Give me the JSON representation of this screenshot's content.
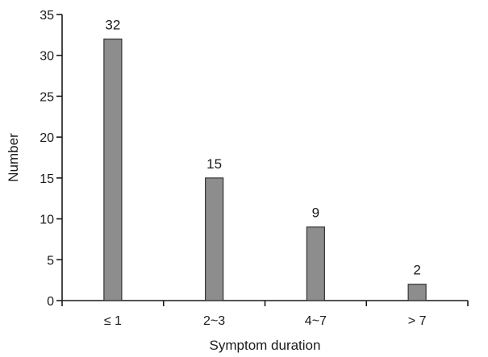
{
  "chart_data": {
    "type": "bar",
    "categories": [
      "≤ 1",
      "2~3",
      "4~7",
      "> 7"
    ],
    "values": [
      32,
      15,
      9,
      2
    ],
    "data_labels": [
      "32",
      "15",
      "9",
      "2"
    ],
    "title": "",
    "xlabel": "Symptom duration",
    "ylabel": "Number",
    "ylim": [
      0,
      35
    ],
    "yticks": [
      0,
      5,
      10,
      15,
      20,
      25,
      30,
      35
    ],
    "grid": false,
    "bar_color": "#8d8d8d"
  }
}
